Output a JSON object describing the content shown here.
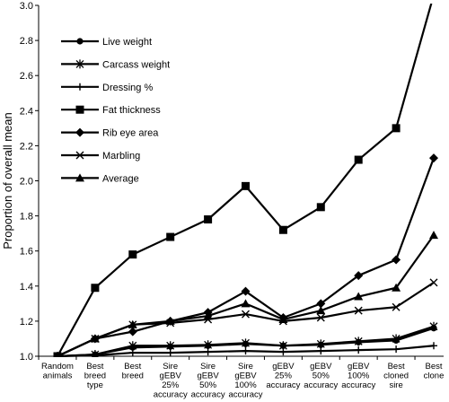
{
  "chart_data": {
    "type": "line",
    "title": "",
    "xlabel": "",
    "ylabel": "Proportion of overall mean",
    "ylim": [
      1.0,
      3.0
    ],
    "yticks": [
      "1.0",
      "1.2",
      "1.4",
      "1.6",
      "1.8",
      "2.0",
      "2.2",
      "2.4",
      "2.6",
      "2.8",
      "3.0"
    ],
    "grid": false,
    "legend_position": "top-left",
    "categories": [
      [
        "Random",
        "animals"
      ],
      [
        "Best",
        "breed",
        "type"
      ],
      [
        "Best",
        "breed"
      ],
      [
        "Sire",
        "gEBV",
        "25%",
        "accuracy"
      ],
      [
        "Sire",
        "gEBV",
        "50%",
        "accuracy"
      ],
      [
        "Sire",
        "gEBV",
        "100%",
        "accuracy"
      ],
      [
        "gEBV",
        "25%",
        "accuracy"
      ],
      [
        "gEBV",
        "50%",
        "accuracy"
      ],
      [
        "gEBV",
        "100%",
        "accuracy"
      ],
      [
        "Best",
        "cloned",
        "sire"
      ],
      [
        "Best",
        "clone"
      ]
    ],
    "series": [
      {
        "name": "Live weight",
        "marker": "circle",
        "values": [
          1.0,
          1.01,
          1.05,
          1.055,
          1.06,
          1.07,
          1.06,
          1.065,
          1.08,
          1.09,
          1.16
        ]
      },
      {
        "name": "Carcass weight",
        "marker": "asterisk",
        "values": [
          1.0,
          1.01,
          1.06,
          1.06,
          1.065,
          1.075,
          1.06,
          1.07,
          1.085,
          1.1,
          1.17
        ]
      },
      {
        "name": "Dressing %",
        "marker": "plus",
        "values": [
          1.0,
          1.005,
          1.02,
          1.02,
          1.025,
          1.03,
          1.025,
          1.03,
          1.035,
          1.04,
          1.06
        ]
      },
      {
        "name": "Fat thickness",
        "marker": "square",
        "values": [
          1.0,
          1.39,
          1.58,
          1.68,
          1.78,
          1.97,
          1.72,
          1.85,
          2.12,
          2.3,
          3.06
        ]
      },
      {
        "name": "Rib eye area",
        "marker": "diamond",
        "values": [
          1.0,
          1.1,
          1.14,
          1.2,
          1.25,
          1.37,
          1.22,
          1.3,
          1.46,
          1.55,
          2.13
        ]
      },
      {
        "name": "Marbling",
        "marker": "x",
        "values": [
          1.0,
          1.1,
          1.18,
          1.19,
          1.21,
          1.24,
          1.2,
          1.22,
          1.26,
          1.28,
          1.42
        ]
      },
      {
        "name": "Average",
        "marker": "triangle",
        "values": [
          1.0,
          1.1,
          1.18,
          1.2,
          1.23,
          1.3,
          1.21,
          1.26,
          1.34,
          1.39,
          1.69
        ]
      }
    ]
  }
}
